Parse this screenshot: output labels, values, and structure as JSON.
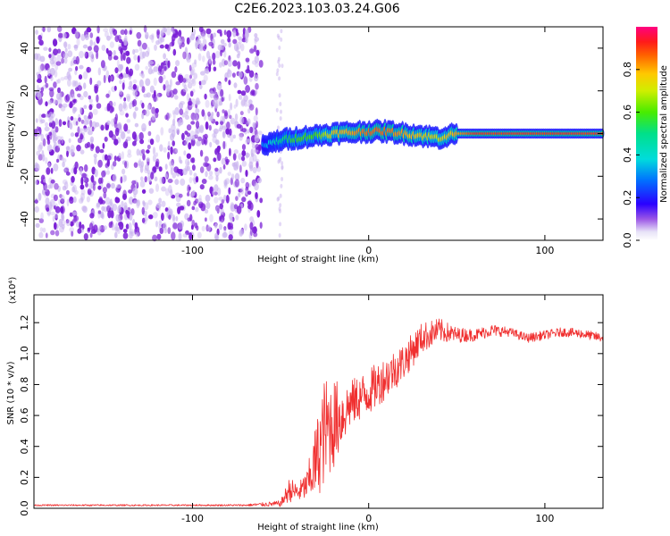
{
  "title": "C2E6.2023.103.03.24.G06",
  "colors": {
    "snr_line": "#f03030",
    "scatter_main": "#7a1fd6",
    "scatter_light": "#c9b3ef",
    "axis": "#000000",
    "background": "#ffffff"
  },
  "chart_data": [
    {
      "type": "heatmap",
      "title": "",
      "xlabel": "Height of straight line (km)",
      "ylabel": "Frequency (Hz)",
      "xlim": [
        -190,
        133
      ],
      "ylim": [
        -50,
        50
      ],
      "xticks": [
        -100,
        0,
        100
      ],
      "yticks": [
        -40,
        -20,
        0,
        20,
        40
      ],
      "grid": false,
      "noise_region_x": [
        -190,
        -60
      ],
      "ridge": {
        "x": [
          -60,
          -50,
          -40,
          -30,
          -20,
          -10,
          0,
          10,
          20,
          30,
          40,
          50,
          60,
          80,
          100,
          120,
          133
        ],
        "y": [
          -6,
          -3,
          -2,
          -1,
          0,
          0.5,
          1,
          1,
          0,
          -1,
          -2,
          0,
          0,
          0,
          0,
          0,
          0
        ],
        "amplitude": [
          0.3,
          0.5,
          0.6,
          0.6,
          0.75,
          0.8,
          0.85,
          0.85,
          0.8,
          0.75,
          0.7,
          0.8,
          0.9,
          0.9,
          0.9,
          0.9,
          0.9
        ]
      },
      "colorbar": {
        "label": "Normalized spectral amplitude",
        "range": [
          0.0,
          1.0
        ],
        "ticks": [
          0.0,
          0.2,
          0.4,
          0.6,
          0.8
        ]
      }
    },
    {
      "type": "line",
      "title": "",
      "xlabel": "Height of straight line (km)",
      "ylabel": "SNR (10 * v/v)",
      "scale_note": "(x10⁴)",
      "xlim": [
        -190,
        133
      ],
      "ylim": [
        0.0,
        1.38
      ],
      "xticks": [
        -100,
        0,
        100
      ],
      "yticks": [
        0.0,
        0.2,
        0.4,
        0.6,
        0.8,
        1.0,
        1.2
      ],
      "grid": false,
      "series": [
        {
          "x": [
            -190,
            -160,
            -130,
            -100,
            -70,
            -50,
            -45,
            -40,
            -35,
            -30,
            -25,
            -20,
            -15,
            -10,
            0,
            10,
            20,
            30,
            40,
            50,
            60,
            70,
            80,
            90,
            100,
            110,
            120,
            133
          ],
          "y": [
            0.02,
            0.02,
            0.02,
            0.02,
            0.02,
            0.03,
            0.12,
            0.1,
            0.15,
            0.3,
            0.5,
            0.55,
            0.6,
            0.68,
            0.75,
            0.85,
            0.95,
            1.1,
            1.15,
            1.12,
            1.12,
            1.15,
            1.14,
            1.1,
            1.12,
            1.14,
            1.13,
            1.1
          ],
          "noise": [
            0.005,
            0.005,
            0.005,
            0.005,
            0.006,
            0.02,
            0.08,
            0.06,
            0.1,
            0.25,
            0.35,
            0.3,
            0.2,
            0.15,
            0.15,
            0.14,
            0.12,
            0.1,
            0.08,
            0.05,
            0.04,
            0.04,
            0.03,
            0.03,
            0.03,
            0.03,
            0.03,
            0.03
          ]
        }
      ]
    }
  ]
}
